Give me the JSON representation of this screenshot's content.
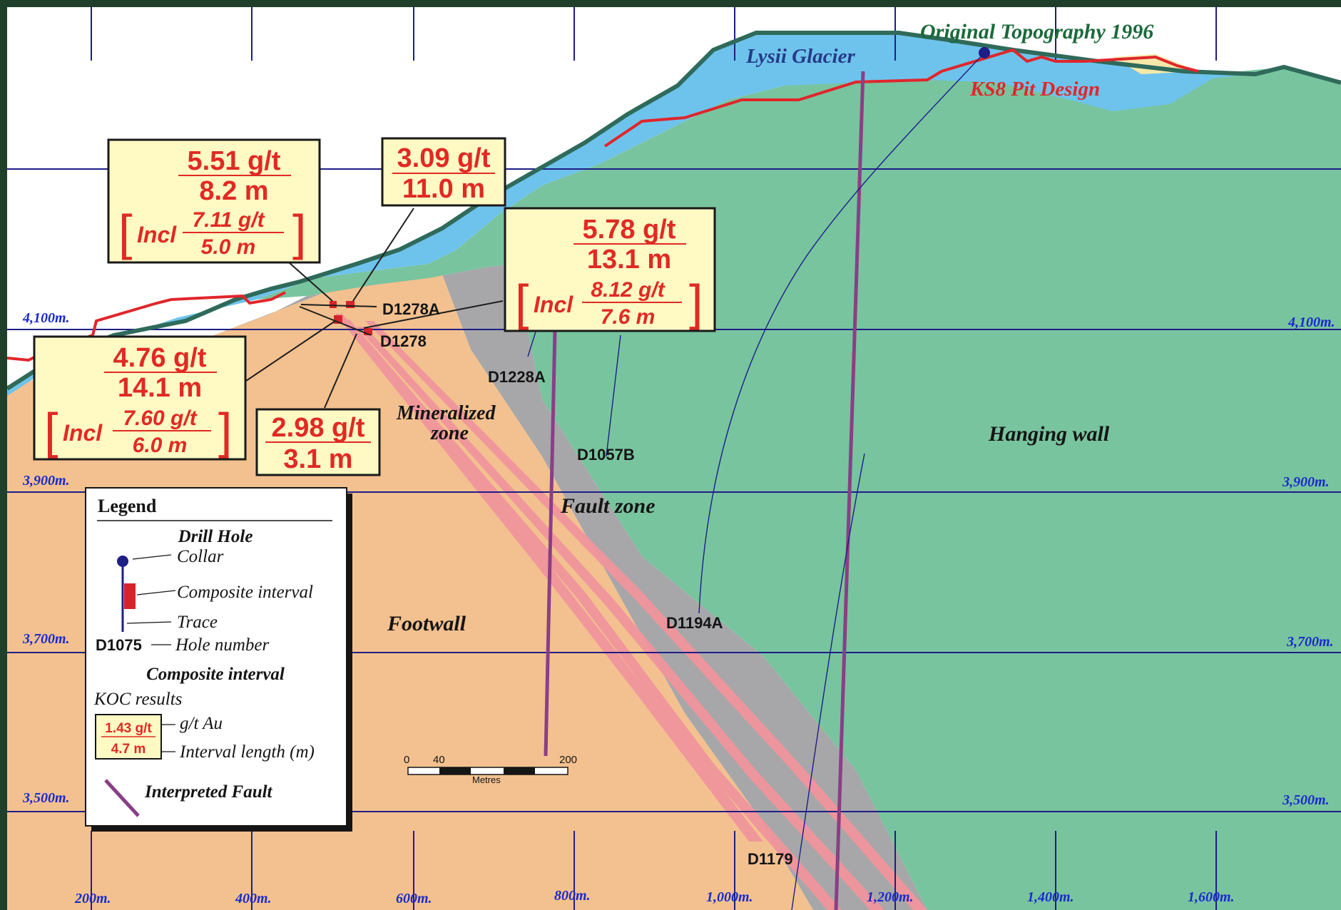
{
  "colors": {
    "frame": "#1f3f2a",
    "sky": "#ffffff",
    "footwall": "#f3c18f",
    "mineralized": "#a7a7a9",
    "hanging_wall": "#78c49f",
    "glacier": "#6ec3ec",
    "grid": "#1e1e86",
    "axis_label": "#1a2acc",
    "pit_line": "#e0262b",
    "fault": "#8a3f85",
    "ore_band": "#f0959d",
    "topo_line": "#2f6a5a",
    "box_fill": "#fff9c4",
    "result_text": "#e02a24"
  },
  "labels": {
    "topography": "Original Topography 1996",
    "glacier": "Lysii Glacier",
    "pit": "KS8 Pit Design",
    "hanging_wall": "Hanging wall",
    "mineralized_zone_1": "Mineralized",
    "mineralized_zone_2": "zone",
    "fault_zone": "Fault zone",
    "footwall": "Footwall"
  },
  "elevations": [
    "4,100m.",
    "3,900m.",
    "3,700m.",
    "3,500m."
  ],
  "eastings": [
    "200m.",
    "400m.",
    "600m.",
    "800m.",
    "1,000m.",
    "1,200m.",
    "1,400m.",
    "1,600m."
  ],
  "holes": {
    "d1278a": "D1278A",
    "d1278": "D1278",
    "d1228a": "D1228A",
    "d1057b": "D1057B",
    "d1194a": "D1194A",
    "d1179": "D1179"
  },
  "results": {
    "b1": {
      "grade": "5.51  g/t",
      "length": "8.2 m",
      "incl": "Incl",
      "incl_grade": "7.11 g/t",
      "incl_length": "5.0 m"
    },
    "b2": {
      "grade": "3.09 g/t",
      "length": "11.0 m"
    },
    "b3": {
      "grade": "5.78  g/t",
      "length": "13.1 m",
      "incl": "Incl",
      "incl_grade": "8.12 g/t",
      "incl_length": "7.6 m"
    },
    "b4": {
      "grade": "4.76 g/t",
      "length": "14.1 m",
      "incl": "Incl",
      "incl_grade": "7.60 g/t",
      "incl_length": "6.0 m"
    },
    "b5": {
      "grade": "2.98 g/t",
      "length": "3.1 m"
    }
  },
  "legend": {
    "title": "Legend",
    "drill_hole": "Drill Hole",
    "collar": "Collar",
    "composite": "Composite interval",
    "trace": "Trace",
    "hole_id": "D1075",
    "hole_number": "Hole number",
    "composite_title": "Composite interval",
    "koc": "KOC results",
    "sample_grade": "1.43 g/t",
    "sample_length": "4.7 m",
    "gt_au": "g/t Au",
    "interval_length": "Interval  length  (m)",
    "fault": "Interpreted Fault"
  },
  "scale_bar": {
    "start": "0",
    "mid": "40",
    "end": "200",
    "unit": "Metres"
  }
}
